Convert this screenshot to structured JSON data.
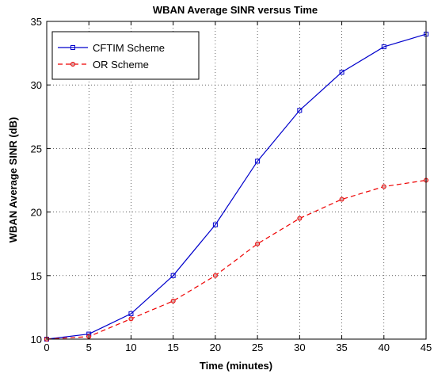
{
  "chart_data": {
    "type": "line",
    "title": "WBAN Average SINR versus Time",
    "xlabel": "Time (minutes)",
    "ylabel": "WBAN Average SINR (dB)",
    "xlim": [
      0,
      45
    ],
    "ylim": [
      10,
      35
    ],
    "x_ticks": [
      0,
      5,
      10,
      15,
      20,
      25,
      30,
      35,
      40,
      45
    ],
    "y_ticks": [
      10,
      15,
      20,
      25,
      30,
      35
    ],
    "grid": true,
    "legend_position": "top-left",
    "x": [
      0,
      5,
      10,
      15,
      20,
      25,
      30,
      35,
      40,
      45
    ],
    "series": [
      {
        "name": "CFTIM Scheme",
        "values": [
          10,
          10.4,
          12,
          15,
          19,
          24,
          28,
          31,
          33,
          34
        ],
        "color": "#0000cc",
        "line_style": "solid",
        "marker": "square"
      },
      {
        "name": "OR  Scheme",
        "values": [
          10,
          10.2,
          11.6,
          13,
          15,
          17.5,
          19.5,
          21,
          22,
          22.5
        ],
        "color": "#ee0000",
        "line_style": "dashed",
        "marker": "circle"
      }
    ]
  }
}
